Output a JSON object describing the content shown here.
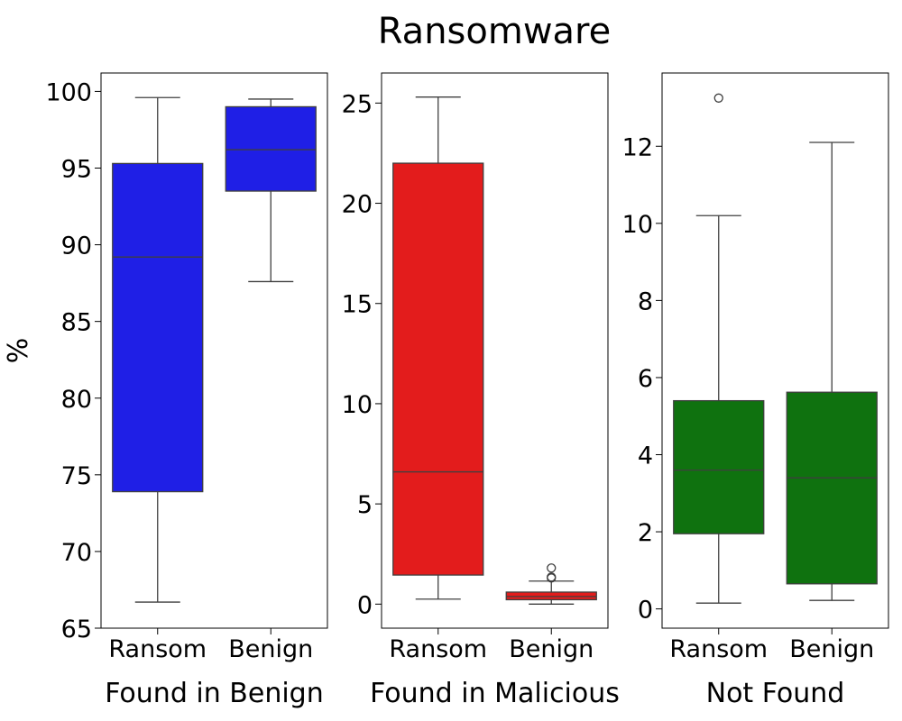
{
  "figure": {
    "title": "Ransomware"
  },
  "chart_data": [
    {
      "type": "box",
      "xlabel": "Found in Benign",
      "ylabel": "%",
      "ylim": [
        65,
        101.2
      ],
      "yticks": [
        65,
        70,
        75,
        80,
        85,
        90,
        95,
        100
      ],
      "color": "#1f1fe6",
      "categories": [
        "Ransom",
        "Benign"
      ],
      "boxes": [
        {
          "category": "Ransom",
          "min": 66.7,
          "q1": 73.9,
          "median": 89.2,
          "q3": 95.3,
          "max": 99.6,
          "outliers": []
        },
        {
          "category": "Benign",
          "min": 87.6,
          "q1": 93.5,
          "median": 96.2,
          "q3": 99.0,
          "max": 99.5,
          "outliers": []
        }
      ]
    },
    {
      "type": "box",
      "xlabel": "Found in Malicious",
      "ylabel": "",
      "ylim": [
        -1.2,
        26.5
      ],
      "yticks": [
        0,
        5,
        10,
        15,
        20,
        25
      ],
      "color": "#e31c1c",
      "categories": [
        "Ransom",
        "Benign"
      ],
      "boxes": [
        {
          "category": "Ransom",
          "min": 0.25,
          "q1": 1.45,
          "median": 6.6,
          "q3": 22.0,
          "max": 25.3,
          "outliers": []
        },
        {
          "category": "Benign",
          "min": 0.0,
          "q1": 0.22,
          "median": 0.38,
          "q3": 0.6,
          "max": 1.15,
          "outliers": [
            1.3,
            1.35,
            1.8
          ]
        }
      ]
    },
    {
      "type": "box",
      "xlabel": "Not Found",
      "ylabel": "",
      "ylim": [
        -0.5,
        13.9
      ],
      "yticks": [
        0,
        2,
        4,
        6,
        8,
        10,
        12
      ],
      "color": "#0f720f",
      "categories": [
        "Ransom",
        "Benign"
      ],
      "boxes": [
        {
          "category": "Ransom",
          "min": 0.15,
          "q1": 1.95,
          "median": 3.6,
          "q3": 5.4,
          "max": 10.2,
          "outliers": [
            13.25
          ]
        },
        {
          "category": "Benign",
          "min": 0.22,
          "q1": 0.65,
          "median": 3.4,
          "q3": 5.62,
          "max": 12.1,
          "outliers": []
        }
      ]
    }
  ]
}
